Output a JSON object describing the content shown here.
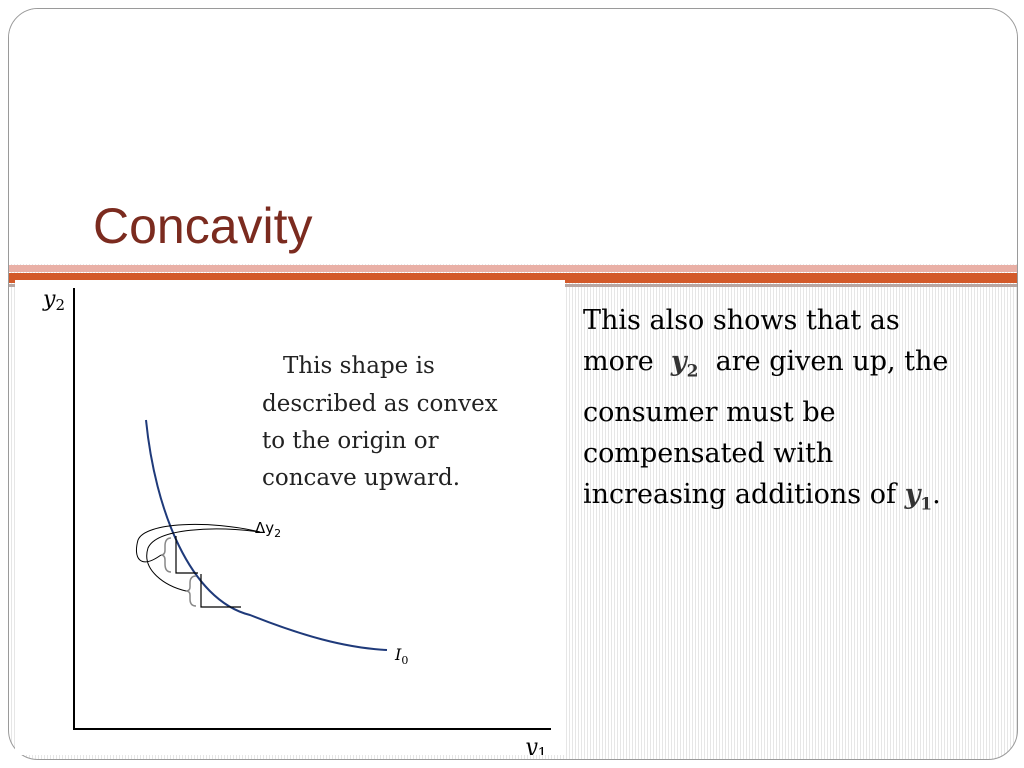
{
  "slide": {
    "title": "Concavity"
  },
  "diagram": {
    "y_axis_label": "y",
    "y_axis_sub": "2",
    "x_axis_label": "y",
    "x_axis_sub": "1",
    "caption_lines": [
      "This shape is",
      "described as convex",
      "to the origin or",
      "concave upward."
    ],
    "delta_label": "Δy",
    "delta_sub": "2",
    "curve_label": "I",
    "curve_sub": "0",
    "colors": {
      "curve": "#1f3a7a",
      "axes": "#000000"
    }
  },
  "body": {
    "text_part1": "This also shows that as more",
    "var1": "y",
    "var1_sub": "2",
    "text_part2": "are given up, the consumer must be compensated with increasing additions of",
    "var2": "y",
    "var2_sub": "1",
    "text_part3": "."
  }
}
